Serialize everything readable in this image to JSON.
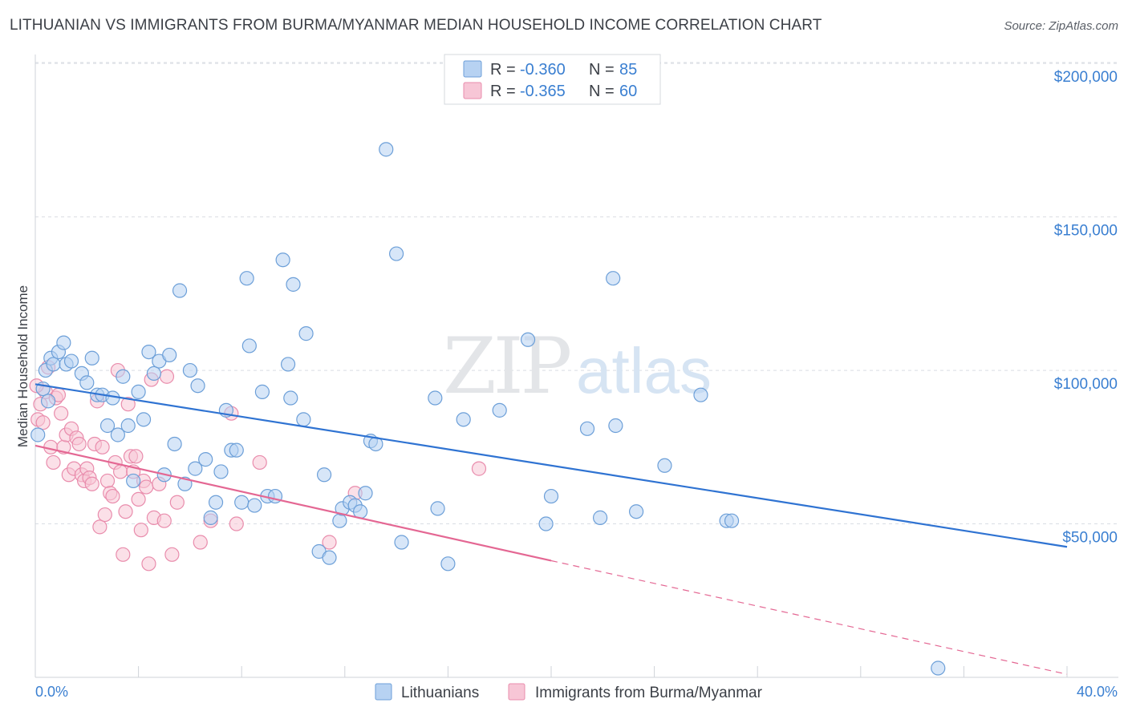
{
  "header": {
    "title": "LITHUANIAN VS IMMIGRANTS FROM BURMA/MYANMAR MEDIAN HOUSEHOLD INCOME CORRELATION CHART",
    "source": "Source: ZipAtlas.com"
  },
  "watermark": {
    "zip": "ZIP",
    "atlas": "atlas"
  },
  "legend": {
    "r_label": "R =",
    "n_label": "N =",
    "rows": [
      {
        "r": "-0.360",
        "n": "85",
        "color": "#9ec4ee"
      },
      {
        "r": "-0.365",
        "n": "60",
        "color": "#f4b3c8"
      }
    ]
  },
  "colors": {
    "blue_fill": "#b7d2f2",
    "blue_stroke": "#6c9fd8",
    "blue_line": "#2f73d2",
    "pink_fill": "#f7c6d6",
    "pink_stroke": "#e98cac",
    "pink_line": "#e46793",
    "axis_label": "#3a7fd1",
    "grid": "#d9dde3"
  },
  "chart_data": {
    "type": "scatter",
    "title": "LITHUANIAN VS IMMIGRANTS FROM BURMA/MYANMAR MEDIAN HOUSEHOLD INCOME CORRELATION CHART",
    "xlabel": "",
    "ylabel": "Median Household Income",
    "xlim": [
      0,
      40
    ],
    "ylim": [
      0,
      205000
    ],
    "x_tick_labels": [
      "0.0%",
      "40.0%"
    ],
    "y_ticks": [
      50000,
      100000,
      150000,
      200000
    ],
    "y_tick_labels": [
      "$50,000",
      "$100,000",
      "$150,000",
      "$200,000"
    ],
    "grid": true,
    "legend_position": "top-center",
    "series": [
      {
        "name": "Lithuanians",
        "r": -0.36,
        "n": 85,
        "trend": {
          "x0": 0,
          "y0": 95500,
          "x1": 40,
          "y1": 42500
        },
        "points": [
          [
            0.1,
            79000
          ],
          [
            0.3,
            94000
          ],
          [
            0.4,
            100000
          ],
          [
            0.5,
            90000
          ],
          [
            0.6,
            104000
          ],
          [
            0.7,
            102000
          ],
          [
            0.9,
            106000
          ],
          [
            1.1,
            109000
          ],
          [
            1.2,
            102000
          ],
          [
            1.4,
            103000
          ],
          [
            1.8,
            99000
          ],
          [
            2.0,
            96000
          ],
          [
            2.2,
            104000
          ],
          [
            2.4,
            92000
          ],
          [
            2.6,
            92000
          ],
          [
            2.8,
            82000
          ],
          [
            3.0,
            91000
          ],
          [
            3.2,
            79000
          ],
          [
            3.4,
            98000
          ],
          [
            3.6,
            82000
          ],
          [
            3.8,
            64000
          ],
          [
            4.0,
            93000
          ],
          [
            4.2,
            84000
          ],
          [
            4.4,
            106000
          ],
          [
            4.6,
            99000
          ],
          [
            4.8,
            103000
          ],
          [
            5.0,
            66000
          ],
          [
            5.2,
            105000
          ],
          [
            5.4,
            76000
          ],
          [
            5.6,
            126000
          ],
          [
            5.8,
            63000
          ],
          [
            6.0,
            100000
          ],
          [
            6.2,
            68000
          ],
          [
            6.3,
            95000
          ],
          [
            6.6,
            71000
          ],
          [
            6.8,
            52000
          ],
          [
            7.0,
            57000
          ],
          [
            7.2,
            67000
          ],
          [
            7.4,
            87000
          ],
          [
            7.6,
            74000
          ],
          [
            7.8,
            74000
          ],
          [
            8.0,
            57000
          ],
          [
            8.2,
            130000
          ],
          [
            8.3,
            108000
          ],
          [
            8.5,
            56000
          ],
          [
            8.8,
            93000
          ],
          [
            9.0,
            59000
          ],
          [
            9.3,
            59000
          ],
          [
            9.6,
            136000
          ],
          [
            9.8,
            102000
          ],
          [
            9.9,
            91000
          ],
          [
            10.0,
            128000
          ],
          [
            10.4,
            84000
          ],
          [
            10.5,
            112000
          ],
          [
            11.0,
            41000
          ],
          [
            11.2,
            66000
          ],
          [
            11.4,
            39000
          ],
          [
            11.8,
            51000
          ],
          [
            11.9,
            55000
          ],
          [
            12.2,
            57000
          ],
          [
            12.4,
            56000
          ],
          [
            12.6,
            54000
          ],
          [
            12.8,
            60000
          ],
          [
            13.0,
            77000
          ],
          [
            13.2,
            76000
          ],
          [
            13.6,
            172000
          ],
          [
            14.0,
            138000
          ],
          [
            14.2,
            44000
          ],
          [
            15.5,
            91000
          ],
          [
            15.6,
            55000
          ],
          [
            16.0,
            37000
          ],
          [
            16.6,
            84000
          ],
          [
            18.0,
            87000
          ],
          [
            19.1,
            110000
          ],
          [
            19.8,
            50000
          ],
          [
            20.0,
            59000
          ],
          [
            21.4,
            81000
          ],
          [
            21.9,
            52000
          ],
          [
            22.4,
            130000
          ],
          [
            22.5,
            82000
          ],
          [
            23.3,
            54000
          ],
          [
            24.4,
            69000
          ],
          [
            25.8,
            92000
          ],
          [
            26.8,
            51000
          ],
          [
            27.0,
            51000
          ],
          [
            35.0,
            3000
          ]
        ]
      },
      {
        "name": "Immigrants from Burma/Myanmar",
        "r": -0.365,
        "n": 60,
        "trend": {
          "x0": 0,
          "y0": 75500,
          "x1": 20,
          "y1": 38000
        },
        "trend_dashed": {
          "x0": 20,
          "y0": 38000,
          "x1": 40,
          "y1": 1000
        },
        "points": [
          [
            0.1,
            84000
          ],
          [
            0.2,
            89000
          ],
          [
            0.3,
            83000
          ],
          [
            0.4,
            93000
          ],
          [
            0.5,
            101000
          ],
          [
            0.6,
            75000
          ],
          [
            0.7,
            70000
          ],
          [
            0.8,
            91000
          ],
          [
            0.9,
            92000
          ],
          [
            1.0,
            86000
          ],
          [
            1.1,
            75000
          ],
          [
            1.2,
            79000
          ],
          [
            1.3,
            66000
          ],
          [
            1.4,
            81000
          ],
          [
            1.5,
            68000
          ],
          [
            1.6,
            78000
          ],
          [
            1.7,
            76000
          ],
          [
            1.8,
            66000
          ],
          [
            1.9,
            64000
          ],
          [
            2.0,
            68000
          ],
          [
            2.1,
            65000
          ],
          [
            2.2,
            63000
          ],
          [
            2.3,
            76000
          ],
          [
            2.4,
            90000
          ],
          [
            2.5,
            49000
          ],
          [
            2.6,
            75000
          ],
          [
            2.7,
            53000
          ],
          [
            2.8,
            64000
          ],
          [
            2.9,
            60000
          ],
          [
            3.0,
            59000
          ],
          [
            3.1,
            70000
          ],
          [
            3.2,
            100000
          ],
          [
            3.3,
            67000
          ],
          [
            3.4,
            40000
          ],
          [
            3.5,
            54000
          ],
          [
            3.6,
            89000
          ],
          [
            3.7,
            72000
          ],
          [
            3.8,
            67000
          ],
          [
            3.9,
            72000
          ],
          [
            4.0,
            58000
          ],
          [
            4.1,
            48000
          ],
          [
            4.2,
            64000
          ],
          [
            4.3,
            62000
          ],
          [
            4.4,
            37000
          ],
          [
            4.5,
            97000
          ],
          [
            4.6,
            52000
          ],
          [
            4.8,
            63000
          ],
          [
            5.0,
            51000
          ],
          [
            5.1,
            98000
          ],
          [
            5.3,
            40000
          ],
          [
            5.5,
            57000
          ],
          [
            6.4,
            44000
          ],
          [
            6.8,
            51000
          ],
          [
            7.6,
            86000
          ],
          [
            7.8,
            50000
          ],
          [
            8.7,
            70000
          ],
          [
            11.4,
            44000
          ],
          [
            12.4,
            60000
          ],
          [
            17.2,
            68000
          ],
          [
            0.05,
            95000
          ]
        ]
      }
    ]
  }
}
